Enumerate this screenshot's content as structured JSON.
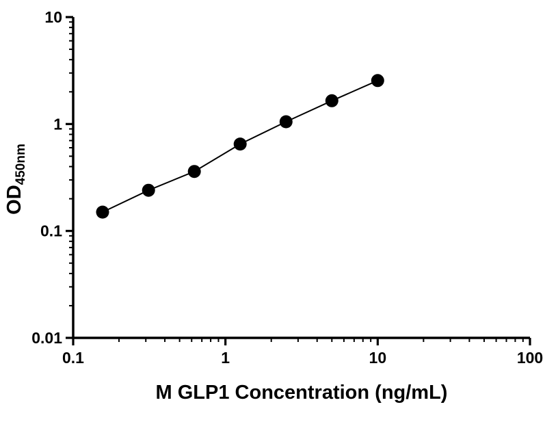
{
  "chart_data": {
    "type": "scatter",
    "title": "",
    "xlabel": "M GLP1 Concentration (ng/mL)",
    "ylabel_main": "OD",
    "ylabel_sub": "450nm",
    "x": [
      0.156,
      0.3125,
      0.625,
      1.25,
      2.5,
      5,
      10
    ],
    "y": [
      0.15,
      0.24,
      0.36,
      0.65,
      1.05,
      1.65,
      2.55
    ],
    "xscale": "log",
    "yscale": "log",
    "xlim": [
      0.1,
      100
    ],
    "ylim": [
      0.01,
      10
    ],
    "x_major_ticks": [
      0.1,
      1,
      10,
      100
    ],
    "x_tick_labels": [
      "0.1",
      "1",
      "10",
      "100"
    ],
    "y_major_ticks": [
      0.01,
      0.1,
      1,
      10
    ],
    "y_tick_labels": [
      "0.01",
      "0.1",
      "1",
      "10"
    ],
    "grid": false,
    "legend": false,
    "line_style": "solid",
    "marker": "filled-circle",
    "marker_color": "#000000",
    "line_color": "#000000",
    "axis_color": "#000000",
    "background": "#ffffff"
  }
}
